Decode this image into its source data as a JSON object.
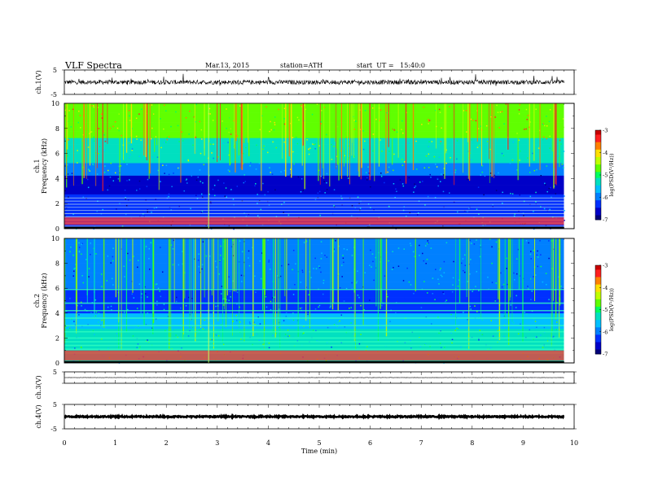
{
  "header": {
    "title": "VLF Spectra",
    "date": "Mar.13, 2015",
    "station": "station=ATH",
    "start": "start  UT =   15:40:0"
  },
  "chart_data": [
    {
      "type": "line",
      "panel": "ch1-waveform",
      "ylabel": "ch.1(V)",
      "ylim": [
        -5,
        5
      ],
      "y_ticks": [
        "5",
        "-5"
      ],
      "xlim": [
        0,
        10
      ],
      "baseline": 0,
      "noise_amplitude": 0.9,
      "data_end": 9.8
    },
    {
      "type": "heatmap",
      "panel": "ch1-spectrogram",
      "ylabel": "ch.1\nFrequency (kHz)",
      "ylim": [
        0,
        10
      ],
      "y_ticks": [
        "0",
        "2",
        "4",
        "6",
        "8",
        "10"
      ],
      "xlim": [
        0,
        10
      ],
      "data_end": 9.8,
      "colorbar": {
        "label": "log(PSD(V²/Hz))",
        "range": [
          -7,
          -3
        ],
        "ticks": [
          "-3",
          "-4",
          "-5",
          "-6",
          "-7"
        ]
      },
      "bands_khz": [
        0.2,
        0.45,
        0.7,
        0.95,
        1.2,
        1.45,
        1.7,
        1.95,
        2.2,
        2.45
      ],
      "low_band_khz": [
        0.3,
        0.9
      ]
    },
    {
      "type": "heatmap",
      "panel": "ch2-spectrogram",
      "ylabel": "ch.2\nFrequency (kHz)",
      "ylim": [
        0,
        10
      ],
      "y_ticks": [
        "0",
        "2",
        "4",
        "6",
        "8",
        "10"
      ],
      "xlim": [
        0,
        10
      ],
      "data_end": 9.8,
      "colorbar": {
        "label": "log(PSD(V²/Hz))",
        "range": [
          -7,
          -3
        ],
        "ticks": [
          "-3",
          "-4",
          "-5",
          "-6",
          "-7"
        ]
      },
      "bands_khz": [
        0.8,
        1.1,
        1.4,
        1.7,
        2.0,
        2.5,
        3.0,
        3.6,
        4.2,
        4.8,
        5.9
      ],
      "low_band_khz": [
        0.2,
        1.0
      ]
    },
    {
      "type": "line",
      "panel": "ch3-waveform",
      "ylabel": "ch.3(V)",
      "ylim": [
        -5,
        5
      ],
      "y_ticks": [
        "5"
      ],
      "xlim": [
        0,
        10
      ],
      "baseline": 0,
      "noise_amplitude": 0.15,
      "data_end": 9.8
    },
    {
      "type": "line",
      "panel": "ch4-waveform",
      "ylabel": "ch.4(V)",
      "ylim": [
        -5,
        5
      ],
      "y_ticks": [
        "5",
        "-5"
      ],
      "xlim": [
        0,
        10
      ],
      "xlabel": "Time (min)",
      "x_ticks": [
        "0",
        "1",
        "2",
        "3",
        "4",
        "5",
        "6",
        "7",
        "8",
        "9",
        "10"
      ],
      "baseline": 0,
      "noise_amplitude": 0.25,
      "data_end": 9.8
    }
  ]
}
